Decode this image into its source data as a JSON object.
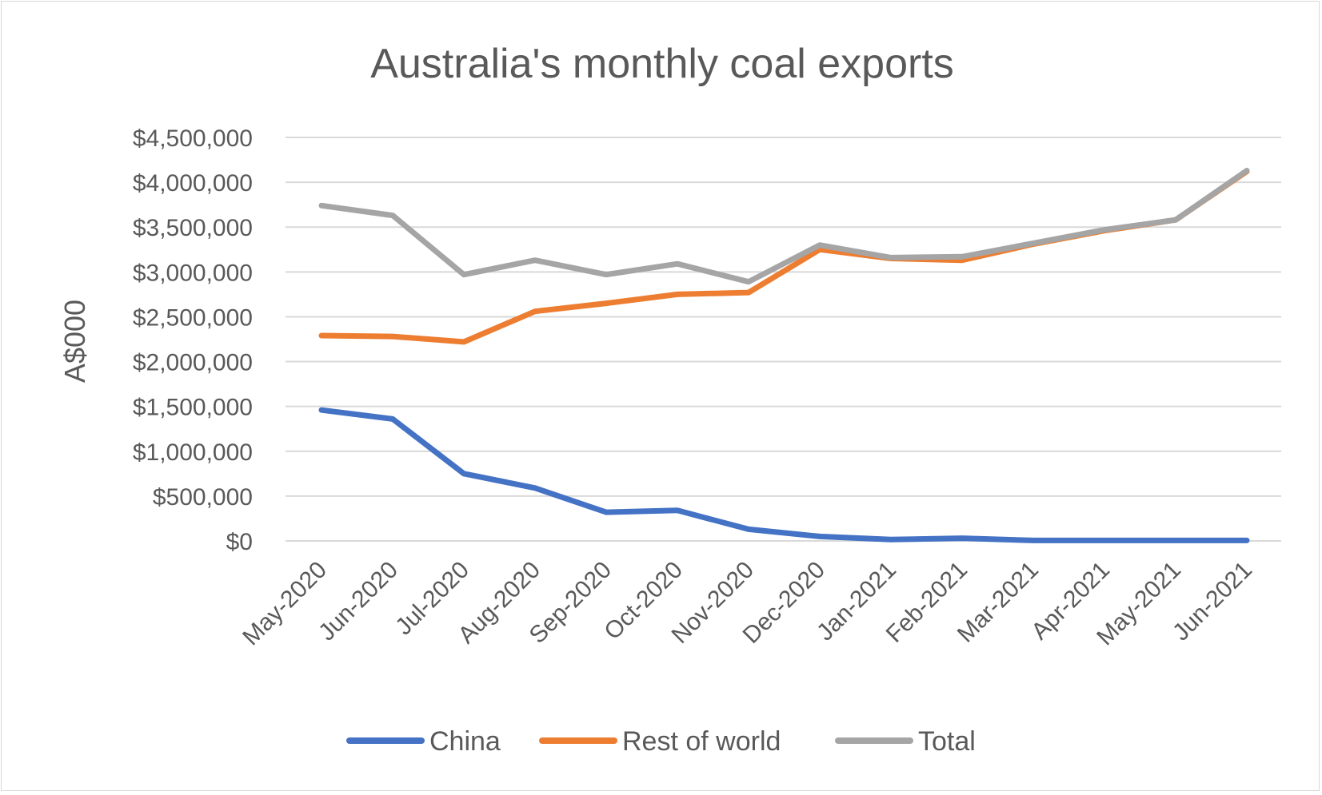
{
  "chart_data": {
    "type": "line",
    "title": "Australia's monthly coal exports",
    "xlabel": "",
    "ylabel": "A$000",
    "ylim": [
      0,
      4500000
    ],
    "y_ticks": [
      0,
      500000,
      1000000,
      1500000,
      2000000,
      2500000,
      3000000,
      3500000,
      4000000,
      4500000
    ],
    "y_tick_labels": [
      "$0",
      "$500,000",
      "$1,000,000",
      "$1,500,000",
      "$2,000,000",
      "$2,500,000",
      "$3,000,000",
      "$3,500,000",
      "$4,000,000",
      "$4,500,000"
    ],
    "grid": true,
    "legend_position": "bottom",
    "categories": [
      "May-2020",
      "Jun-2020",
      "Jul-2020",
      "Aug-2020",
      "Sep-2020",
      "Oct-2020",
      "Nov-2020",
      "Dec-2020",
      "Jan-2021",
      "Feb-2021",
      "Mar-2021",
      "Apr-2021",
      "May-2021",
      "Jun-2021"
    ],
    "series": [
      {
        "name": "China",
        "color": "#4472c4",
        "values": [
          1460000,
          1360000,
          750000,
          590000,
          320000,
          340000,
          130000,
          50000,
          15000,
          30000,
          5000,
          5000,
          5000,
          5000
        ]
      },
      {
        "name": "Rest of world",
        "color": "#ed7d31",
        "values": [
          2290000,
          2280000,
          2220000,
          2560000,
          2650000,
          2750000,
          2770000,
          3250000,
          3150000,
          3130000,
          3310000,
          3460000,
          3580000,
          4120000
        ]
      },
      {
        "name": "Total",
        "color": "#a5a5a5",
        "values": [
          3740000,
          3630000,
          2970000,
          3130000,
          2970000,
          3090000,
          2890000,
          3300000,
          3160000,
          3170000,
          3320000,
          3470000,
          3580000,
          4130000
        ]
      }
    ]
  }
}
